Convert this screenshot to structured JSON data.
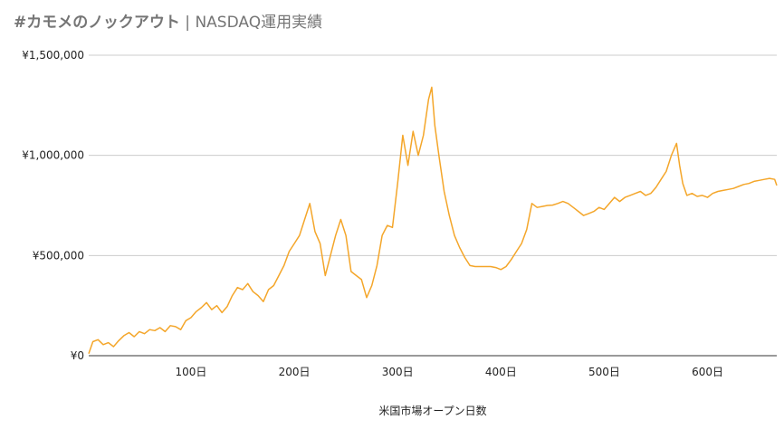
{
  "title": {
    "bold": "#カモメのノックアウト",
    "rest": " | NASDAQ運用実績"
  },
  "chart_data": {
    "type": "line",
    "title": "#カモメのノックアウト | NASDAQ運用実績",
    "xlabel": "米国市場オープン日数",
    "ylabel": "",
    "xlim": [
      1,
      667
    ],
    "ylim": [
      0,
      1500000
    ],
    "grid": true,
    "legend": "none",
    "yticks": [
      {
        "value": 0,
        "label": "¥0"
      },
      {
        "value": 500000,
        "label": "¥500,000"
      },
      {
        "value": 1000000,
        "label": "¥1,000,000"
      },
      {
        "value": 1500000,
        "label": "¥1,500,000"
      }
    ],
    "xticks": [
      {
        "value": 100,
        "label": "100日"
      },
      {
        "value": 200,
        "label": "200日"
      },
      {
        "value": 300,
        "label": "300日"
      },
      {
        "value": 400,
        "label": "400日"
      },
      {
        "value": 500,
        "label": "500日"
      },
      {
        "value": 600,
        "label": "600日"
      }
    ],
    "series": [
      {
        "color": "#f4a62a",
        "x": [
          1,
          5,
          10,
          15,
          20,
          25,
          30,
          35,
          40,
          45,
          50,
          55,
          60,
          65,
          70,
          75,
          80,
          85,
          90,
          95,
          100,
          105,
          110,
          115,
          120,
          125,
          130,
          135,
          140,
          145,
          150,
          155,
          160,
          165,
          170,
          175,
          180,
          185,
          190,
          195,
          200,
          205,
          210,
          215,
          220,
          225,
          230,
          235,
          240,
          245,
          250,
          255,
          260,
          265,
          270,
          275,
          280,
          285,
          290,
          295,
          300,
          305,
          310,
          315,
          320,
          325,
          330,
          333,
          336,
          340,
          345,
          350,
          355,
          360,
          365,
          370,
          375,
          380,
          385,
          390,
          395,
          400,
          405,
          410,
          415,
          420,
          425,
          430,
          435,
          440,
          445,
          450,
          455,
          460,
          465,
          470,
          475,
          480,
          485,
          490,
          495,
          500,
          505,
          510,
          515,
          520,
          525,
          530,
          535,
          540,
          545,
          550,
          555,
          560,
          565,
          570,
          573,
          576,
          580,
          585,
          590,
          595,
          600,
          605,
          610,
          615,
          620,
          625,
          630,
          635,
          640,
          645,
          650,
          655,
          660,
          665,
          667
        ],
        "y": [
          10000,
          70000,
          80000,
          55000,
          65000,
          45000,
          75000,
          100000,
          115000,
          95000,
          120000,
          110000,
          130000,
          125000,
          140000,
          120000,
          150000,
          145000,
          130000,
          175000,
          190000,
          220000,
          240000,
          265000,
          230000,
          250000,
          215000,
          245000,
          300000,
          340000,
          330000,
          360000,
          320000,
          300000,
          270000,
          330000,
          350000,
          400000,
          450000,
          520000,
          560000,
          600000,
          680000,
          760000,
          620000,
          560000,
          400000,
          500000,
          600000,
          680000,
          600000,
          420000,
          400000,
          380000,
          290000,
          350000,
          450000,
          600000,
          650000,
          640000,
          860000,
          1100000,
          950000,
          1120000,
          1000000,
          1100000,
          1280000,
          1340000,
          1150000,
          1000000,
          820000,
          700000,
          600000,
          540000,
          490000,
          450000,
          445000,
          445000,
          445000,
          445000,
          440000,
          430000,
          445000,
          480000,
          520000,
          560000,
          630000,
          760000,
          740000,
          745000,
          750000,
          752000,
          760000,
          770000,
          760000,
          740000,
          720000,
          700000,
          710000,
          720000,
          740000,
          730000,
          760000,
          790000,
          770000,
          790000,
          800000,
          810000,
          820000,
          800000,
          810000,
          840000,
          880000,
          920000,
          1000000,
          1060000,
          950000,
          860000,
          800000,
          810000,
          795000,
          800000,
          790000,
          810000,
          820000,
          825000,
          830000,
          835000,
          845000,
          855000,
          860000,
          870000,
          875000,
          880000,
          885000,
          880000,
          850000
        ]
      }
    ]
  }
}
